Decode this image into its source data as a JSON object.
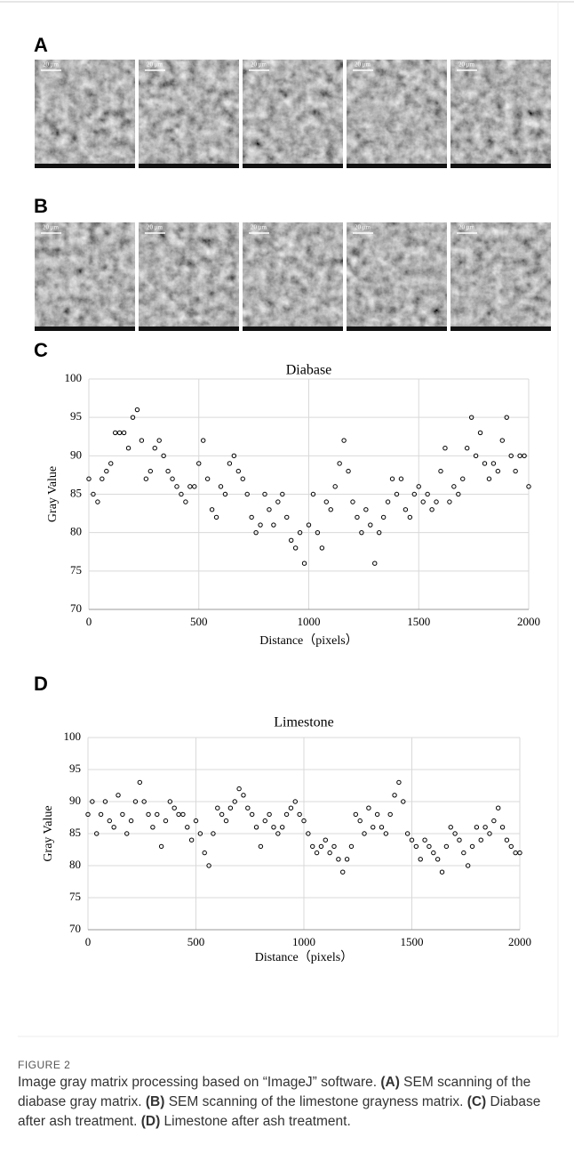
{
  "figure": {
    "panel_labels": [
      "A",
      "B",
      "C",
      "D"
    ],
    "scale_bar": "20 μm",
    "caption_label": "FIGURE 2",
    "caption": [
      {
        "text": "Image gray matrix processing based on “ImageJ” software. ",
        "bold": false
      },
      {
        "text": "(A)",
        "bold": true
      },
      {
        "text": " SEM scanning of the diabase gray matrix. ",
        "bold": false
      },
      {
        "text": "(B)",
        "bold": true
      },
      {
        "text": " SEM scanning of the limestone grayness matrix. ",
        "bold": false
      },
      {
        "text": "(C)",
        "bold": true
      },
      {
        "text": " Diabase after ash treatment. ",
        "bold": false
      },
      {
        "text": "(D)",
        "bold": true
      },
      {
        "text": " Limestone after ash treatment.",
        "bold": false
      }
    ]
  },
  "chart_data": [
    {
      "type": "scatter",
      "title": "Diabase",
      "xlabel": "Distance（pixels）",
      "ylabel": "Gray Value",
      "xlim": [
        0,
        2000
      ],
      "xticks": [
        0,
        500,
        1000,
        1500,
        2000
      ],
      "ylim": [
        70,
        100
      ],
      "yticks": [
        70,
        75,
        80,
        85,
        90,
        95,
        100
      ],
      "grid": true,
      "x": [
        0,
        20,
        40,
        60,
        80,
        100,
        120,
        140,
        160,
        180,
        200,
        220,
        240,
        260,
        280,
        300,
        320,
        340,
        360,
        380,
        400,
        420,
        440,
        460,
        480,
        500,
        520,
        540,
        560,
        580,
        600,
        620,
        640,
        660,
        680,
        700,
        720,
        740,
        760,
        780,
        800,
        820,
        840,
        860,
        880,
        900,
        920,
        940,
        960,
        980,
        1000,
        1020,
        1040,
        1060,
        1080,
        1100,
        1120,
        1140,
        1160,
        1180,
        1200,
        1220,
        1240,
        1260,
        1280,
        1300,
        1320,
        1340,
        1360,
        1380,
        1400,
        1420,
        1440,
        1460,
        1480,
        1500,
        1520,
        1540,
        1560,
        1580,
        1600,
        1620,
        1640,
        1660,
        1680,
        1700,
        1720,
        1740,
        1760,
        1780,
        1800,
        1820,
        1840,
        1860,
        1880,
        1900,
        1920,
        1940,
        1960,
        1980,
        2000
      ],
      "series": [
        {
          "color": "#000000",
          "values": [
            87,
            85,
            84,
            87,
            88,
            89,
            93,
            93,
            93,
            91,
            95,
            96,
            92,
            87,
            88,
            91,
            92,
            90,
            88,
            87,
            86,
            85,
            84,
            86,
            86,
            89,
            92,
            87,
            83,
            82,
            86,
            85,
            89,
            90,
            88,
            87,
            85,
            82,
            80,
            81,
            85,
            83,
            81,
            84,
            85,
            82,
            79,
            78,
            80,
            76,
            81,
            85,
            80,
            78,
            84,
            83,
            86,
            89,
            92,
            88,
            84,
            82,
            80,
            83,
            81,
            76,
            80,
            82,
            84,
            87,
            85,
            87,
            83,
            82,
            85,
            86,
            84,
            85,
            83,
            84,
            88,
            91,
            84,
            86,
            85,
            87,
            91,
            95,
            90,
            93,
            89,
            87,
            89,
            88,
            92,
            95,
            90,
            88,
            90,
            90,
            86
          ]
        }
      ]
    },
    {
      "type": "scatter",
      "title": "Limestone",
      "xlabel": "Distance（pixels）",
      "ylabel": "Gray Value",
      "xlim": [
        0,
        2000
      ],
      "xticks": [
        0,
        500,
        1000,
        1500,
        2000
      ],
      "ylim": [
        70,
        100
      ],
      "yticks": [
        70,
        75,
        80,
        85,
        90,
        95,
        100
      ],
      "grid": true,
      "x": [
        0,
        20,
        40,
        60,
        80,
        100,
        120,
        140,
        160,
        180,
        200,
        220,
        240,
        260,
        280,
        300,
        320,
        340,
        360,
        380,
        400,
        420,
        440,
        460,
        480,
        500,
        520,
        540,
        560,
        580,
        600,
        620,
        640,
        660,
        680,
        700,
        720,
        740,
        760,
        780,
        800,
        820,
        840,
        860,
        880,
        900,
        920,
        940,
        960,
        980,
        1000,
        1020,
        1040,
        1060,
        1080,
        1100,
        1120,
        1140,
        1160,
        1180,
        1200,
        1220,
        1240,
        1260,
        1280,
        1300,
        1320,
        1340,
        1360,
        1380,
        1400,
        1420,
        1440,
        1460,
        1480,
        1500,
        1520,
        1540,
        1560,
        1580,
        1600,
        1620,
        1640,
        1660,
        1680,
        1700,
        1720,
        1740,
        1760,
        1780,
        1800,
        1820,
        1840,
        1860,
        1880,
        1900,
        1920,
        1940,
        1960,
        1980,
        2000
      ],
      "series": [
        {
          "color": "#000000",
          "values": [
            88,
            90,
            85,
            88,
            90,
            87,
            86,
            91,
            88,
            85,
            87,
            90,
            93,
            90,
            88,
            86,
            88,
            83,
            87,
            90,
            89,
            88,
            88,
            86,
            84,
            87,
            85,
            82,
            80,
            85,
            89,
            88,
            87,
            89,
            90,
            92,
            91,
            89,
            88,
            86,
            83,
            87,
            88,
            86,
            85,
            86,
            88,
            89,
            90,
            88,
            87,
            85,
            83,
            82,
            83,
            84,
            82,
            83,
            81,
            79,
            81,
            83,
            88,
            87,
            85,
            89,
            86,
            88,
            86,
            85,
            88,
            91,
            93,
            90,
            85,
            84,
            83,
            81,
            84,
            83,
            82,
            81,
            79,
            83,
            86,
            85,
            84,
            82,
            80,
            83,
            86,
            84,
            86,
            85,
            87,
            89,
            86,
            84,
            83,
            82,
            82
          ]
        }
      ]
    }
  ]
}
